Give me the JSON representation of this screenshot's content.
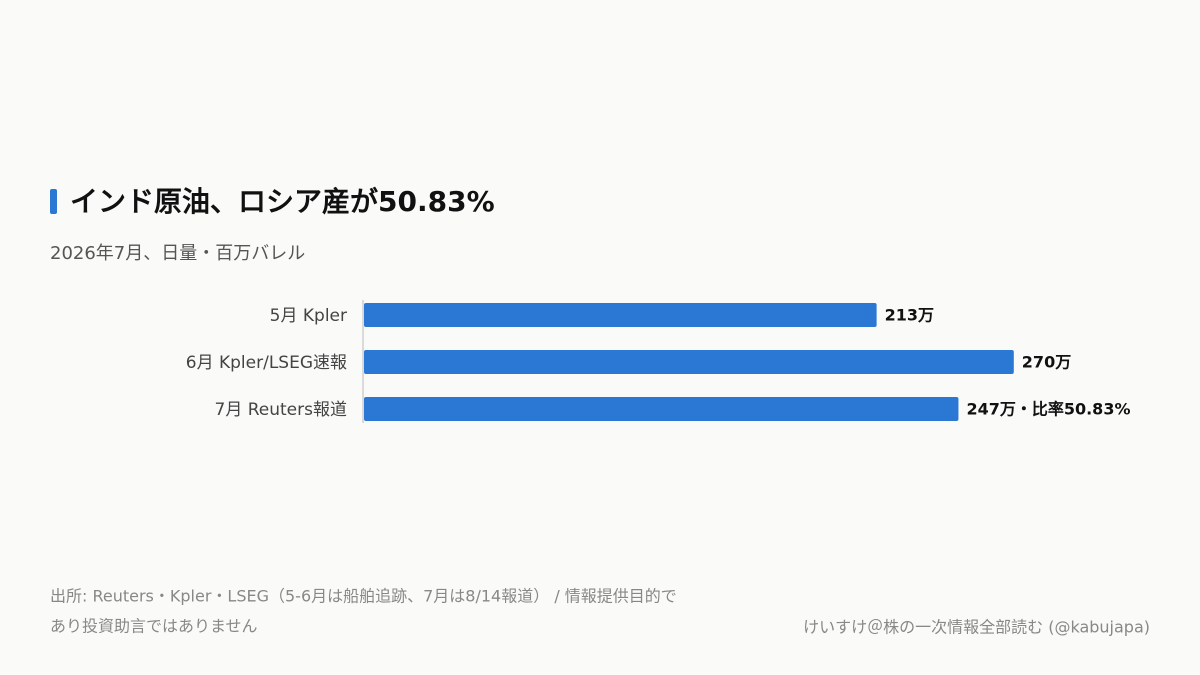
{
  "chart_data": {
    "type": "bar",
    "orientation": "horizontal",
    "title": "インド原油、ロシア産が50.83%",
    "subtitle": "2026年7月、日量・百万バレル",
    "categories": [
      "5月 Kpler",
      "6月 Kpler/LSEG速報",
      "7月 Reuters報道"
    ],
    "values": [
      213,
      270,
      247
    ],
    "value_labels": [
      "213万",
      "270万",
      "247万・比率50.83%"
    ],
    "color": "#2b78d4",
    "xlim": [
      0,
      300
    ],
    "source": [
      "出所: Reuters・Kpler・LSEG（5-6月は船舶追跡、7月は8/14報道） / 情報提供目的で",
      "あり投資助言ではありません"
    ],
    "credit": "けいすけ＠株の一次情報全部読む (@kabujapa)"
  }
}
